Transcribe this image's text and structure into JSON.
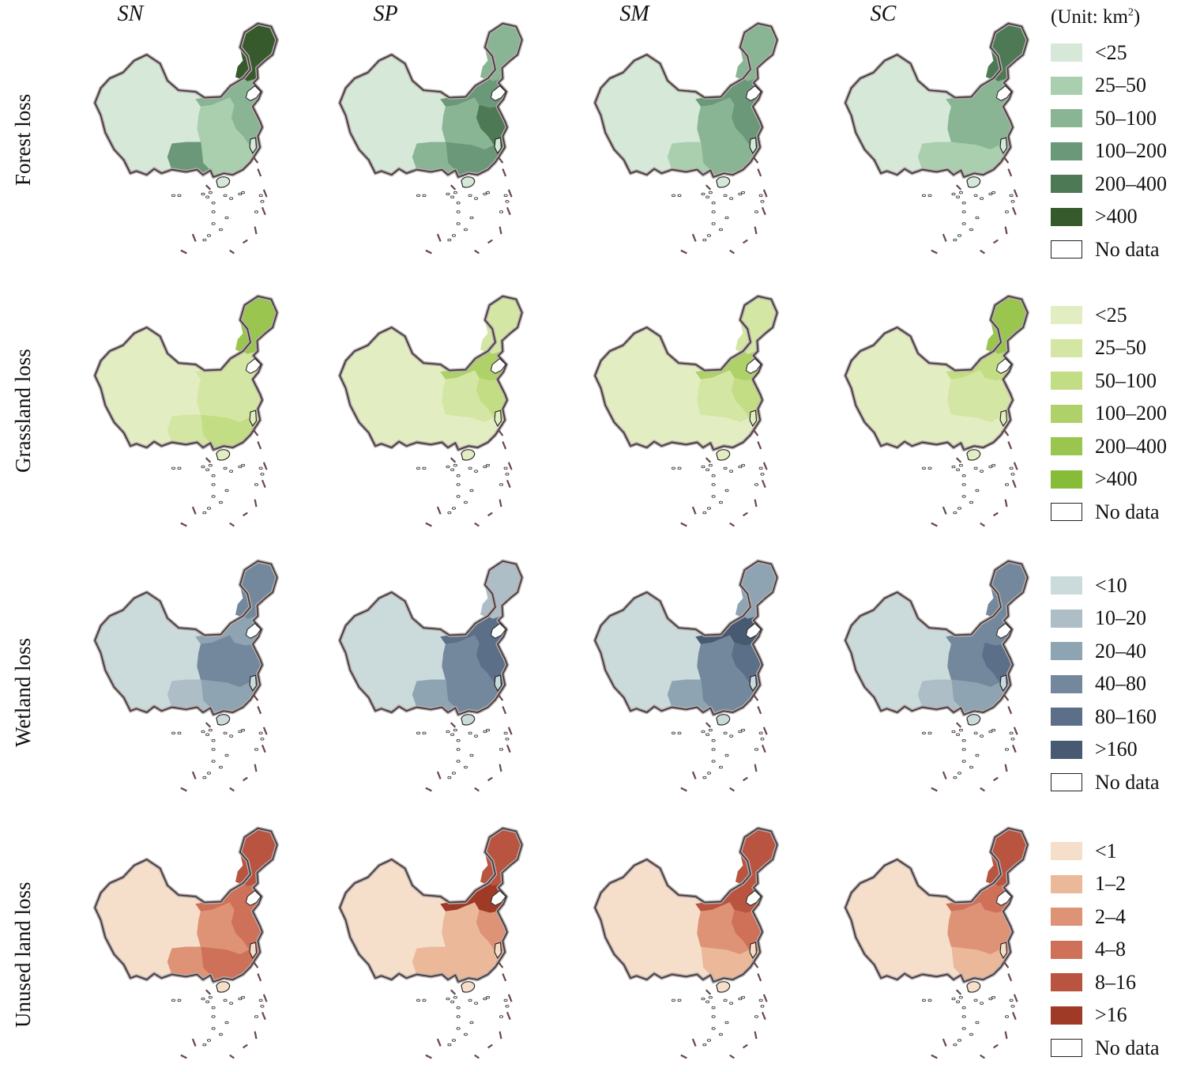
{
  "scenarios": [
    "SN",
    "SP",
    "SM",
    "SC"
  ],
  "unit": {
    "prefix": "(Unit: km",
    "power": "2",
    "suffix": ")"
  },
  "no_data_label": "No data",
  "no_data_color": "#ffffff",
  "rows": [
    {
      "label": "Forest loss",
      "classes": [
        "<25",
        "25–50",
        "50–100",
        "100–200",
        "200–400",
        ">400"
      ],
      "colors": [
        "#d6e8d8",
        "#aacfaf",
        "#8ab594",
        "#6a9878",
        "#4d7a55",
        "#365a2c"
      ],
      "maps": [
        {
          "base": 0,
          "ne": 5,
          "nc": 2,
          "ec": 2,
          "cc": 1,
          "sc": 1,
          "sw": 3
        },
        {
          "base": 0,
          "ne": 2,
          "nc": 3,
          "ec": 4,
          "cc": 2,
          "sc": 3,
          "sw": 2
        },
        {
          "base": 0,
          "ne": 2,
          "nc": 3,
          "ec": 3,
          "cc": 2,
          "sc": 2,
          "sw": 1
        },
        {
          "base": 0,
          "ne": 4,
          "nc": 2,
          "ec": 2,
          "cc": 2,
          "sc": 1,
          "sw": 1
        }
      ]
    },
    {
      "label": "Grassland loss",
      "classes": [
        "<25",
        "25–50",
        "50–100",
        "100–200",
        "200–400",
        ">400"
      ],
      "colors": [
        "#e3edc2",
        "#d4e6a3",
        "#c3dd84",
        "#aed16a",
        "#9ac64f",
        "#87bc38"
      ],
      "maps": [
        {
          "base": 0,
          "ne": 4,
          "nc": 1,
          "ec": 1,
          "cc": 1,
          "sc": 2,
          "sw": 1
        },
        {
          "base": 0,
          "ne": 1,
          "nc": 3,
          "ec": 2,
          "cc": 1,
          "sc": 0,
          "sw": 0
        },
        {
          "base": 0,
          "ne": 1,
          "nc": 3,
          "ec": 2,
          "cc": 1,
          "sc": 0,
          "sw": 0
        },
        {
          "base": 0,
          "ne": 4,
          "nc": 2,
          "ec": 1,
          "cc": 1,
          "sc": 0,
          "sw": 0
        }
      ]
    },
    {
      "label": "Wetland loss",
      "classes": [
        "<10",
        "10–20",
        "20–40",
        "40–80",
        "80–160",
        ">160"
      ],
      "colors": [
        "#cbdadb",
        "#aebec6",
        "#8fa4b2",
        "#74889d",
        "#5b6f88",
        "#475a72"
      ],
      "maps": [
        {
          "base": 0,
          "ne": 3,
          "nc": 2,
          "ec": 3,
          "cc": 3,
          "sc": 2,
          "sw": 1
        },
        {
          "base": 0,
          "ne": 1,
          "nc": 4,
          "ec": 4,
          "cc": 3,
          "sc": 3,
          "sw": 2
        },
        {
          "base": 0,
          "ne": 2,
          "nc": 5,
          "ec": 4,
          "cc": 3,
          "sc": 3,
          "sw": 2
        },
        {
          "base": 0,
          "ne": 3,
          "nc": 3,
          "ec": 4,
          "cc": 3,
          "sc": 2,
          "sw": 1
        }
      ]
    },
    {
      "label": "Unused land loss",
      "classes": [
        "<1",
        "1–2",
        "2–4",
        "4–8",
        "8–16",
        ">16"
      ],
      "colors": [
        "#f5dfca",
        "#ebb89a",
        "#de9276",
        "#cf7158",
        "#b85440",
        "#9e3a25"
      ],
      "maps": [
        {
          "base": 0,
          "ne": 4,
          "nc": 3,
          "ec": 3,
          "cc": 2,
          "sc": 3,
          "sw": 2
        },
        {
          "base": 0,
          "ne": 4,
          "nc": 5,
          "ec": 2,
          "cc": 1,
          "sc": 1,
          "sw": 1
        },
        {
          "base": 0,
          "ne": 4,
          "nc": 4,
          "ec": 3,
          "cc": 2,
          "sc": 1,
          "sw": 0
        },
        {
          "base": 0,
          "ne": 4,
          "nc": 3,
          "ec": 2,
          "cc": 2,
          "sc": 1,
          "sw": 0
        }
      ]
    }
  ]
}
